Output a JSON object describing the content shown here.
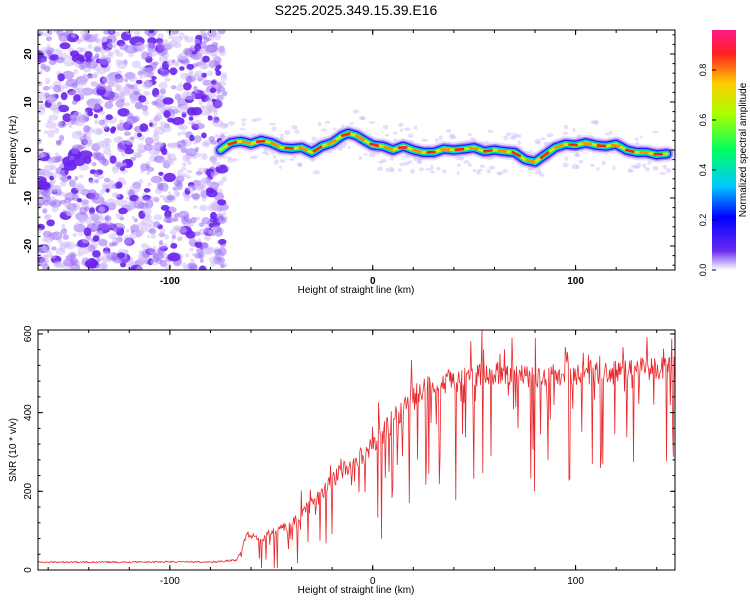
{
  "title": "S225.2025.349.15.39.E16",
  "colors": {
    "axis": "#000000",
    "snr_line": "#e8282c",
    "noise": "#7b2cf0"
  },
  "chart_data": [
    {
      "type": "heatmap",
      "xlabel": "Height of straight line (km)",
      "ylabel": "Frequency (Hz)",
      "xlim": [
        -165,
        149
      ],
      "ylim": [
        -25,
        25
      ],
      "xticks": [
        -100,
        0,
        100
      ],
      "xtick_labels": [
        "-100",
        "0",
        "100"
      ],
      "yticks": [
        -20,
        -10,
        0,
        10,
        20
      ],
      "ytick_labels": [
        "-20",
        "-10",
        "0",
        "10",
        "20"
      ],
      "signal_start_x": -75,
      "signal_track": {
        "x": [
          -75,
          -70,
          -65,
          -60,
          -55,
          -50,
          -45,
          -40,
          -35,
          -30,
          -25,
          -20,
          -15,
          -12,
          -8,
          -5,
          0,
          5,
          10,
          15,
          20,
          25,
          30,
          35,
          40,
          45,
          50,
          55,
          60,
          65,
          70,
          75,
          80,
          85,
          90,
          95,
          100,
          105,
          110,
          115,
          120,
          125,
          130,
          135,
          140,
          145
        ],
        "y": [
          0,
          1.5,
          1.8,
          1.3,
          2,
          1.5,
          0.5,
          0.3,
          0.5,
          -0.5,
          0.8,
          1.5,
          3,
          3.5,
          3,
          2.2,
          1,
          0.8,
          0,
          0.8,
          0,
          -0.5,
          -0.5,
          0.2,
          0,
          0.2,
          0.5,
          -0.3,
          0,
          -0.3,
          -0.5,
          -2,
          -2.5,
          -1,
          0.5,
          1.2,
          1,
          1.5,
          1,
          0.8,
          1.2,
          0,
          -0.5,
          -0.5,
          -1,
          -0.8
        ]
      },
      "colorbar": {
        "label": "Normalized spectral amplitude",
        "ticks": [
          0.0,
          0.2,
          0.4,
          0.6,
          0.8
        ],
        "tick_labels": [
          "0.0",
          "0.2",
          "0.4",
          "0.6",
          "0.8"
        ],
        "range": [
          0,
          0.96
        ]
      }
    },
    {
      "type": "line",
      "xlabel": "Height of straight line (km)",
      "ylabel": "SNR (10 * v/v)",
      "xlim": [
        -165,
        149
      ],
      "ylim": [
        0,
        610
      ],
      "xticks": [
        -100,
        0,
        100
      ],
      "xtick_labels": [
        "-100",
        "0",
        "100"
      ],
      "yticks": [
        0,
        200,
        400,
        600
      ],
      "ytick_labels": [
        "0",
        "200",
        "400",
        "600"
      ],
      "series": [
        {
          "name": "SNR",
          "x": [
            -165,
            -140,
            -120,
            -100,
            -80,
            -67,
            -64,
            -62,
            -60,
            -55,
            -50,
            -45,
            -40,
            -35,
            -30,
            -25,
            -20,
            -15,
            -10,
            -5,
            0,
            5,
            10,
            15,
            20,
            25,
            30,
            40,
            50,
            60,
            70,
            80,
            90,
            100,
            110,
            120,
            130,
            140,
            149
          ],
          "y": [
            20,
            20,
            20,
            21,
            20,
            25,
            60,
            95,
            85,
            80,
            95,
            105,
            115,
            145,
            165,
            195,
            225,
            255,
            270,
            290,
            315,
            345,
            380,
            415,
            440,
            460,
            470,
            480,
            495,
            500,
            495,
            490,
            495,
            500,
            500,
            505,
            510,
            510,
            515
          ],
          "noise_amplitude": [
            6,
            6,
            6,
            6,
            6,
            10,
            25,
            30,
            30,
            35,
            40,
            45,
            50,
            55,
            60,
            65,
            70,
            75,
            80,
            85,
            90,
            95,
            100,
            100,
            100,
            100,
            100,
            100,
            100,
            100,
            100,
            100,
            100,
            100,
            100,
            100,
            100,
            100,
            100
          ]
        }
      ]
    }
  ]
}
